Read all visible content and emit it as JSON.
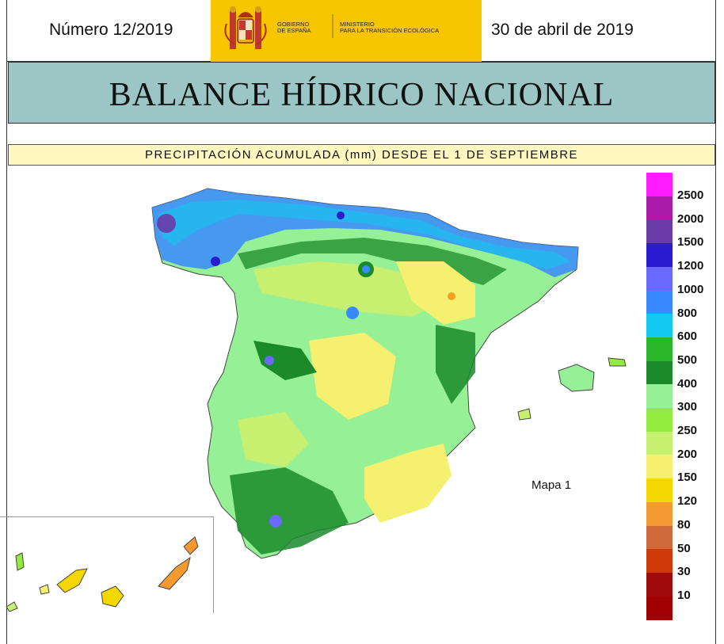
{
  "header": {
    "bulletin_number": "Número 12/2019",
    "date": "30 de abril de 2019",
    "logo": {
      "gov_line1": "GOBIERNO",
      "gov_line2": "DE ESPAÑA",
      "ministry_line1": "MINISTERIO",
      "ministry_line2": "PARA LA TRANSICIÓN ECOLÓGICA",
      "background_color": "#f7c600"
    }
  },
  "title": "BALANCE HÍDRICO NACIONAL",
  "subtitle": "PRECIPITACIÓN ACUMULADA (mm) DESDE EL 1 DE SEPTIEMBRE",
  "map_label": "Mapa 1",
  "legend": [
    {
      "label": "2500",
      "color": "#ff1aff"
    },
    {
      "label": "2000",
      "color": "#aa1aaa"
    },
    {
      "label": "1500",
      "color": "#6a3aa8"
    },
    {
      "label": "1200",
      "color": "#2a1ad0"
    },
    {
      "label": "1000",
      "color": "#6a6aff"
    },
    {
      "label": "800",
      "color": "#3a8aff"
    },
    {
      "label": "600",
      "color": "#12c8f0"
    },
    {
      "label": "500",
      "color": "#2ab82a"
    },
    {
      "label": "400",
      "color": "#1a8a2a"
    },
    {
      "label": "300",
      "color": "#96f096"
    },
    {
      "label": "250",
      "color": "#92ec40"
    },
    {
      "label": "200",
      "color": "#c8f070"
    },
    {
      "label": "150",
      "color": "#f5f070"
    },
    {
      "label": "120",
      "color": "#f5d700"
    },
    {
      "label": "80",
      "color": "#f59a30"
    },
    {
      "label": "50",
      "color": "#d06a3a"
    },
    {
      "label": "30",
      "color": "#d03a0a"
    },
    {
      "label": "10",
      "color": "#a00a0a"
    },
    {
      "label": "",
      "color": "#a00000"
    }
  ]
}
